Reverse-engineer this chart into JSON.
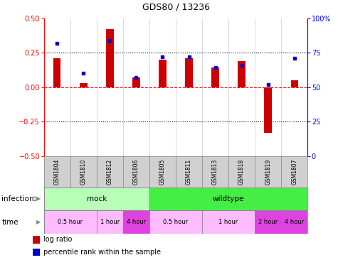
{
  "title": "GDS80 / 13236",
  "samples": [
    "GSM1804",
    "GSM1810",
    "GSM1812",
    "GSM1806",
    "GSM1805",
    "GSM1811",
    "GSM1813",
    "GSM1818",
    "GSM1819",
    "GSM1807"
  ],
  "log_ratio": [
    0.21,
    0.03,
    0.42,
    0.07,
    0.2,
    0.21,
    0.14,
    0.19,
    -0.33,
    0.05
  ],
  "percentile": [
    82,
    60,
    84,
    57,
    72,
    72,
    64,
    66,
    52,
    71
  ],
  "bar_color": "#cc0000",
  "dot_color": "#0000cc",
  "ylim_left": [
    -0.5,
    0.5
  ],
  "ylim_right": [
    0,
    100
  ],
  "yticks_left": [
    -0.5,
    -0.25,
    0.0,
    0.25,
    0.5
  ],
  "yticks_right": [
    0,
    25,
    50,
    75,
    100
  ],
  "infection_groups": [
    {
      "label": "mock",
      "start": 0,
      "end": 4,
      "color": "#b8ffb8"
    },
    {
      "label": "wildtype",
      "start": 4,
      "end": 10,
      "color": "#44ee44"
    }
  ],
  "time_groups": [
    {
      "label": "0.5 hour",
      "start": 0,
      "end": 2,
      "color": "#ffbbff"
    },
    {
      "label": "1 hour",
      "start": 2,
      "end": 3,
      "color": "#ffbbff"
    },
    {
      "label": "4 hour",
      "start": 3,
      "end": 4,
      "color": "#dd44dd"
    },
    {
      "label": "0.5 hour",
      "start": 4,
      "end": 6,
      "color": "#ffbbff"
    },
    {
      "label": "1 hour",
      "start": 6,
      "end": 8,
      "color": "#ffbbff"
    },
    {
      "label": "2 hour",
      "start": 8,
      "end": 9,
      "color": "#dd44dd"
    },
    {
      "label": "4 hour",
      "start": 9,
      "end": 10,
      "color": "#dd44dd"
    }
  ],
  "legend_items": [
    {
      "label": "log ratio",
      "color": "#cc0000"
    },
    {
      "label": "percentile rank within the sample",
      "color": "#0000cc"
    }
  ],
  "bg_color": "#ffffff",
  "sample_bg": "#d0d0d0",
  "arrow_color": "#888888"
}
